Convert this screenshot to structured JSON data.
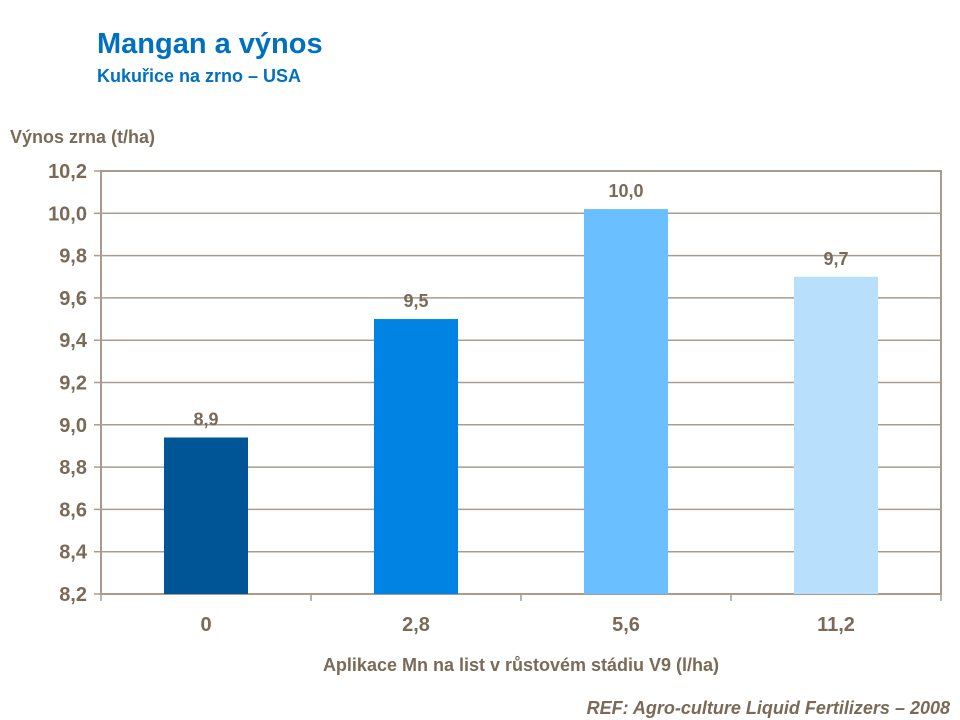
{
  "title": "Mangan a výnos",
  "subtitle": "Kukuřice na zrno – USA",
  "reference": "REF: Agro-culture Liquid Fertilizers – 2008",
  "chart_data": {
    "type": "bar",
    "title": "Mangan a výnos",
    "subtitle": "Kukuřice na zrno – USA",
    "ylabel": "Výnos zrna (t/ha)",
    "xlabel": "Aplikace Mn na list v růstovém stádiu V9 (l/ha)",
    "categories": [
      "0",
      "2,8",
      "5,6",
      "11,2"
    ],
    "values": [
      8.94,
      9.5,
      10.02,
      9.7
    ],
    "data_labels": [
      "8,9",
      "9,5",
      "10,0",
      "9,7"
    ],
    "ylim": [
      8.2,
      10.2
    ],
    "yticks": [
      8.2,
      8.4,
      8.6,
      8.8,
      9.0,
      9.2,
      9.4,
      9.6,
      9.8,
      10.0,
      10.2
    ],
    "grid": true,
    "legend": "none",
    "colors": [
      "#005596",
      "#0083e3",
      "#69bfff",
      "#b8dffc"
    ],
    "axis_color": "#a89c90",
    "text_color": "#7a6a58"
  }
}
